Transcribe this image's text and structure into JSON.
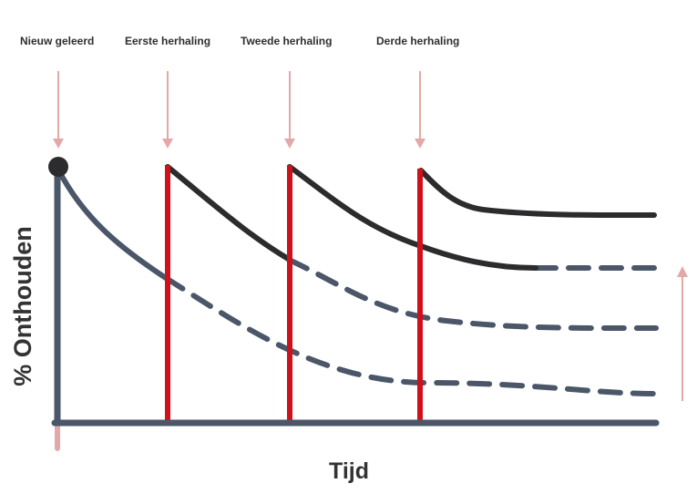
{
  "events": [
    {
      "label": "Nieuw geleerd"
    },
    {
      "label": "Eerste herhaling"
    },
    {
      "label": "Tweede herhaling"
    },
    {
      "label": "Derde herhaling"
    }
  ],
  "axes": {
    "x_label": "Tijd",
    "y_label": "% Onthouden"
  },
  "colors": {
    "axis": "#4b5668",
    "review_line": "#d0111b",
    "retained_curve": "#2c2c2e",
    "forgetting_curve": "#4b5668",
    "arrow": "#e3a8a8"
  }
}
